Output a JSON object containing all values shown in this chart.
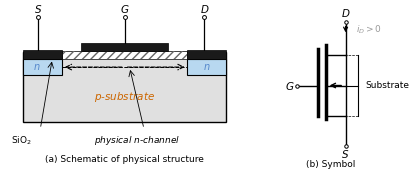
{
  "fig_width": 4.1,
  "fig_height": 1.71,
  "dpi": 100,
  "bg_color": "#ffffff",
  "title_a": "(a) Schematic of physical structure",
  "title_b": "(b) Symbol",
  "black": "#000000",
  "blue_color": "#5588cc",
  "orange_color": "#cc6600",
  "gray_light": "#e0e0e0",
  "gray_sio2": "#f5f5f5",
  "iD_color": "#999999"
}
